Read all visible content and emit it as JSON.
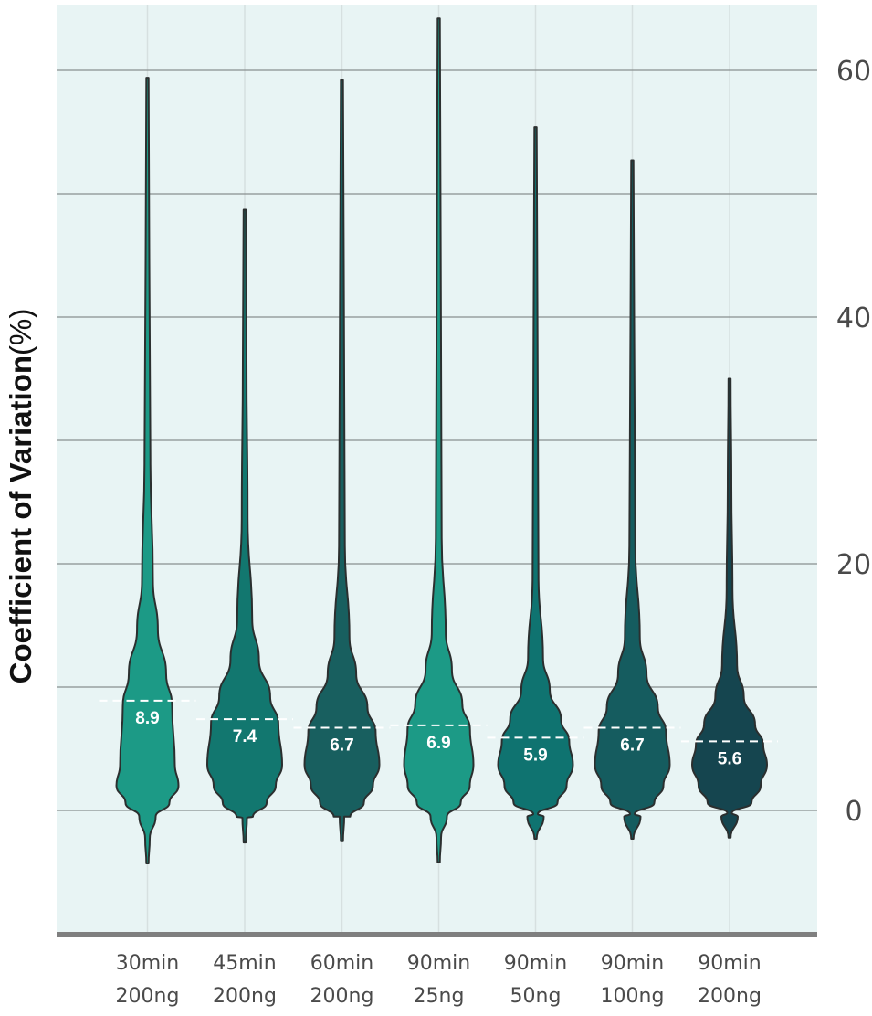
{
  "chart_data": {
    "type": "violin",
    "ylabel_bold": "Coefficient of Variation",
    "ylabel_unit": "(%)",
    "ylim": [
      -10,
      65
    ],
    "yticks": [
      0,
      20,
      40,
      60
    ],
    "grid": true,
    "background_color": "#e8f4f4",
    "median_line_color": "#ffffff",
    "categories": [
      {
        "line1": "30min",
        "line2": "200ng",
        "median": 8.9,
        "median_label": "8.9",
        "min": -4.3,
        "max": 59.4,
        "color": "#1c9a86"
      },
      {
        "line1": "45min",
        "line2": "200ng",
        "median": 7.4,
        "median_label": "7.4",
        "min": -2.6,
        "max": 48.7,
        "color": "#12776f"
      },
      {
        "line1": "60min",
        "line2": "200ng",
        "median": 6.7,
        "median_label": "6.7",
        "min": -2.5,
        "max": 59.2,
        "color": "#185f5f"
      },
      {
        "line1": "90min",
        "line2": "25ng",
        "median": 6.9,
        "median_label": "6.9",
        "min": -4.2,
        "max": 64.2,
        "color": "#1c9a86"
      },
      {
        "line1": "90min",
        "line2": "50ng",
        "median": 5.9,
        "median_label": "5.9",
        "min": -2.3,
        "max": 55.4,
        "color": "#0f7370"
      },
      {
        "line1": "90min",
        "line2": "100ng",
        "median": 6.7,
        "median_label": "6.7",
        "min": -2.3,
        "max": 52.7,
        "color": "#155c5f"
      },
      {
        "line1": "90min",
        "line2": "200ng",
        "median": 5.6,
        "median_label": "5.6",
        "min": -2.2,
        "max": 35.0,
        "color": "#15454f"
      }
    ]
  }
}
